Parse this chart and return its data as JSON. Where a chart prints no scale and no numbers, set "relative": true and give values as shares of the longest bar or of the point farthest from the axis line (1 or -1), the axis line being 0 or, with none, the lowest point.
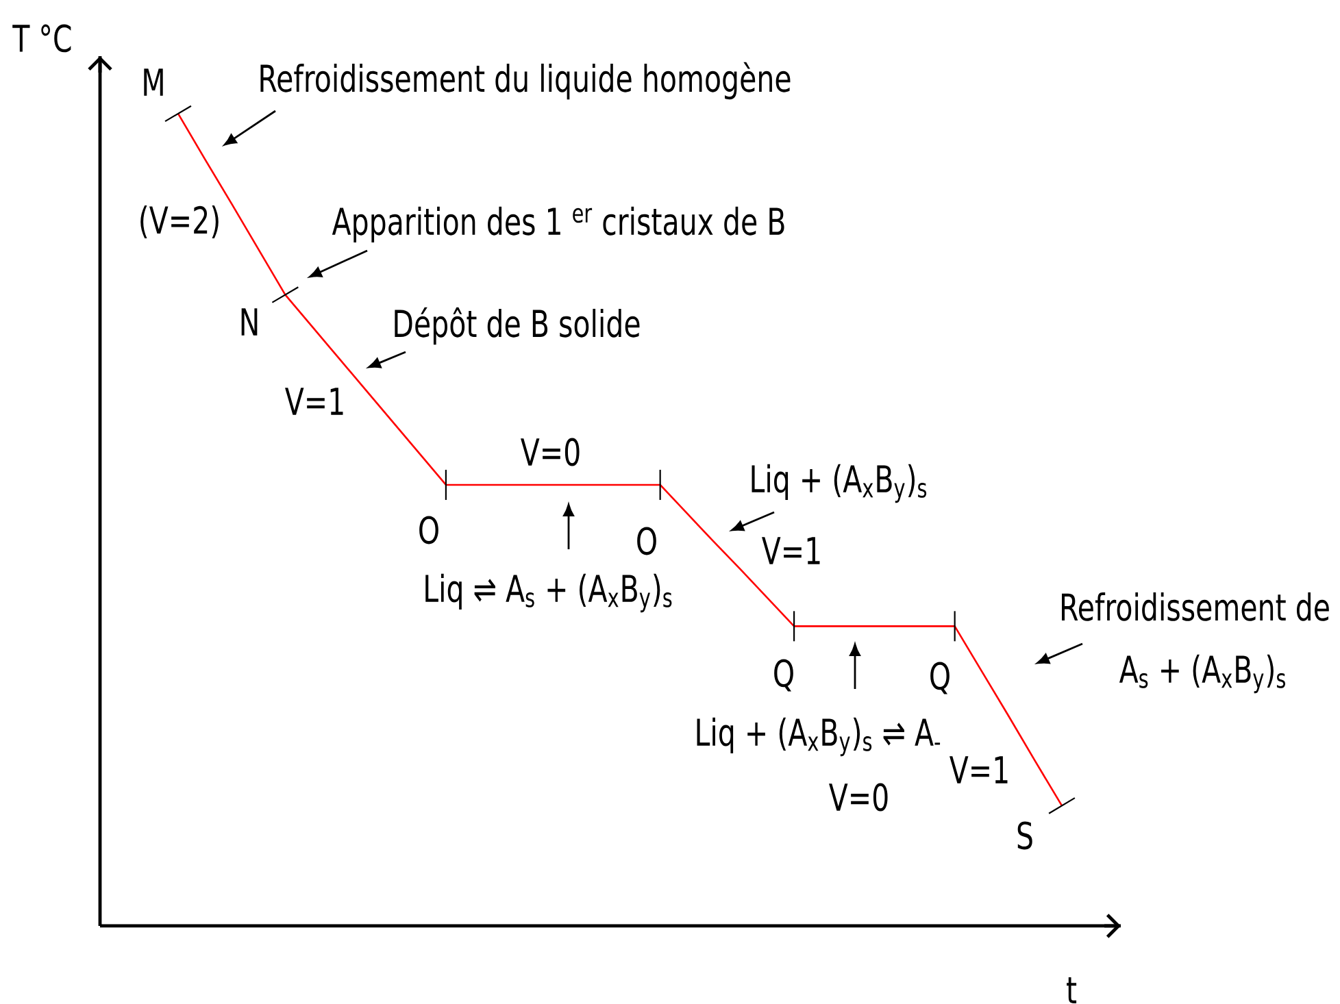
{
  "chart_data": {
    "type": "line",
    "xlabel": "t",
    "ylabel": "T °C",
    "relative": true,
    "categories": [
      null,
      null,
      null,
      null,
      null,
      null,
      null,
      null,
      null,
      null,
      null,
      null,
      null,
      null,
      null,
      null,
      null,
      null,
      null,
      null,
      null,
      null,
      null,
      null,
      null,
      null,
      null,
      null,
      null,
      null,
      null,
      null,
      null,
      null
    ],
    "color": "#ff0000",
    "values": [
      1,
      0.944,
      0.889,
      0.833,
      0.777,
      0.738,
      0.699,
      0.66,
      0.621,
      0.582,
      0.543,
      0.543,
      0.543,
      0.543,
      0.543,
      0.543,
      0.543,
      0.543,
      0.543,
      0.508,
      0.473,
      0.439,
      0.404,
      0.369,
      0.369,
      0.369,
      0.369,
      0.369,
      0.369,
      0.369,
      0.314,
      0.259,
      0.203,
      0.148
    ],
    "annotations": [
      "M",
      "Refroidissement du liquide homogène",
      "(V=2)",
      "Apparition des 1 $^{er}$ cristaux de B",
      "N",
      "Dépôt de B solide",
      "V=1",
      "V=0",
      "O",
      "O",
      "Liq ⇌ A$_{s}$ + (A$_{x}$B$_{y}$)$_{s}$",
      "Liq + (A$_{x}$B$_{y}$)$_{s}$",
      "V=1",
      "Q",
      "Q",
      "Liq + (A$_{x}$B$_{y}$)$_{s}$ ⇌ A$_{-}$",
      "V=0",
      "V=1",
      "S",
      "Refroidissement de",
      "A$_{s}$ + (A$_{x}$B$_{y}$)$_{s}$"
    ]
  }
}
